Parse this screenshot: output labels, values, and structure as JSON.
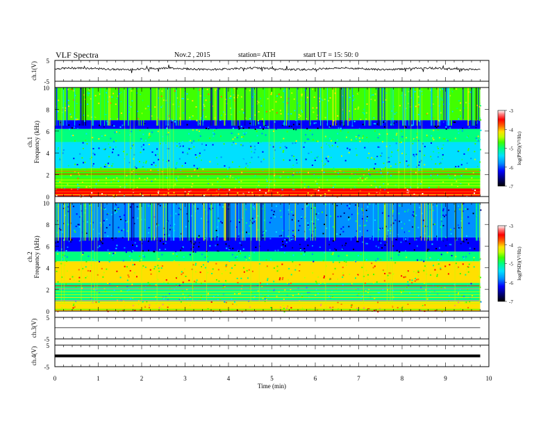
{
  "header": {
    "title": "VLF  Spectra",
    "date": "Nov.2  , 2015",
    "station": "station= ATH",
    "start": "start  UT  =    15: 50: 0"
  },
  "colors": {
    "spectrogram_scale": [
      "#000000",
      "#00007a",
      "#0000ff",
      "#0090ff",
      "#00e0ff",
      "#00ff80",
      "#40ff00",
      "#c0ff00",
      "#ffe000",
      "#ff6000",
      "#ff0000",
      "#ff8080",
      "#ffffff"
    ],
    "trace": "#000000"
  },
  "chart_data": [
    {
      "type": "line",
      "name": "ch.1 waveform",
      "ylabel": "ch.1(V)",
      "ylim": [
        -5,
        5
      ],
      "yticks": [
        "5",
        "-5"
      ],
      "xlim": [
        0,
        10
      ],
      "description_values": {
        "baseline_V": 1.0,
        "min_V": -0.8,
        "max_V": 2.2
      }
    },
    {
      "type": "heatmap",
      "name": "ch.1 spectrogram",
      "ylabel_top": "ch.1",
      "ylabel": "Frequency  (kHz)",
      "ylim": [
        0,
        10
      ],
      "yticks": [
        "0",
        "2",
        "4",
        "6",
        "8",
        "10"
      ],
      "xlim": [
        0,
        9.8
      ],
      "colorbar": {
        "label": "log(PSD)(V²/Hz)",
        "range": [
          -7,
          -3
        ],
        "ticks": [
          "-3",
          "-4",
          "-5",
          "-6",
          "-7"
        ]
      },
      "bands": [
        {
          "f_from": 0,
          "f_to": 0.7,
          "log_psd": -3.6
        },
        {
          "f_from": 0.7,
          "f_to": 2.6,
          "log_psd": -5.0
        },
        {
          "f_from": 2.6,
          "f_to": 5.0,
          "log_psd": -5.6
        },
        {
          "f_from": 5.0,
          "f_to": 6.2,
          "log_psd": -5.2
        },
        {
          "f_from": 6.2,
          "f_to": 7.0,
          "log_psd": -6.4
        },
        {
          "f_from": 7.0,
          "f_to": 10,
          "log_psd": -4.9
        }
      ]
    },
    {
      "type": "heatmap",
      "name": "ch.2 spectrogram",
      "ylabel_top": "ch.2",
      "ylabel": "Frequency  (kHz)",
      "ylim": [
        0,
        10
      ],
      "yticks": [
        "0",
        "2",
        "4",
        "6",
        "8",
        "10"
      ],
      "xlim": [
        0,
        9.8
      ],
      "colorbar": {
        "label": "log(PSD)(V²/Hz)",
        "range": [
          -7,
          -3
        ],
        "ticks": [
          "-3",
          "-4",
          "-5",
          "-6",
          "-7"
        ]
      },
      "bands": [
        {
          "f_from": 0,
          "f_to": 0.9,
          "log_psd": -4.2
        },
        {
          "f_from": 0.9,
          "f_to": 2.6,
          "log_psd": -5.3
        },
        {
          "f_from": 2.6,
          "f_to": 4.6,
          "log_psd": -4.5
        },
        {
          "f_from": 4.6,
          "f_to": 5.5,
          "log_psd": -5.4
        },
        {
          "f_from": 5.5,
          "f_to": 6.8,
          "log_psd": -6.5
        },
        {
          "f_from": 6.8,
          "f_to": 10,
          "log_psd": -6.0
        }
      ]
    },
    {
      "type": "line",
      "name": "ch.3 waveform",
      "ylabel": "ch.3(V)",
      "ylim": [
        -5,
        5
      ],
      "yticks": [
        "5",
        "-5"
      ],
      "xlim": [
        0,
        10
      ],
      "description_values": {
        "baseline_V": 0.2
      }
    },
    {
      "type": "line",
      "name": "ch.4 waveform",
      "ylabel": "ch.4(V)",
      "ylim": [
        -5,
        5
      ],
      "yticks": [
        "5",
        "-5"
      ],
      "xlim": [
        0,
        10
      ],
      "description_values": {
        "baseline_V": 0.0
      }
    }
  ],
  "x_axis": {
    "label": "Time  (min)",
    "ticks": [
      "0",
      "1",
      "2",
      "3",
      "4",
      "5",
      "6",
      "7",
      "8",
      "9",
      "10"
    ]
  }
}
